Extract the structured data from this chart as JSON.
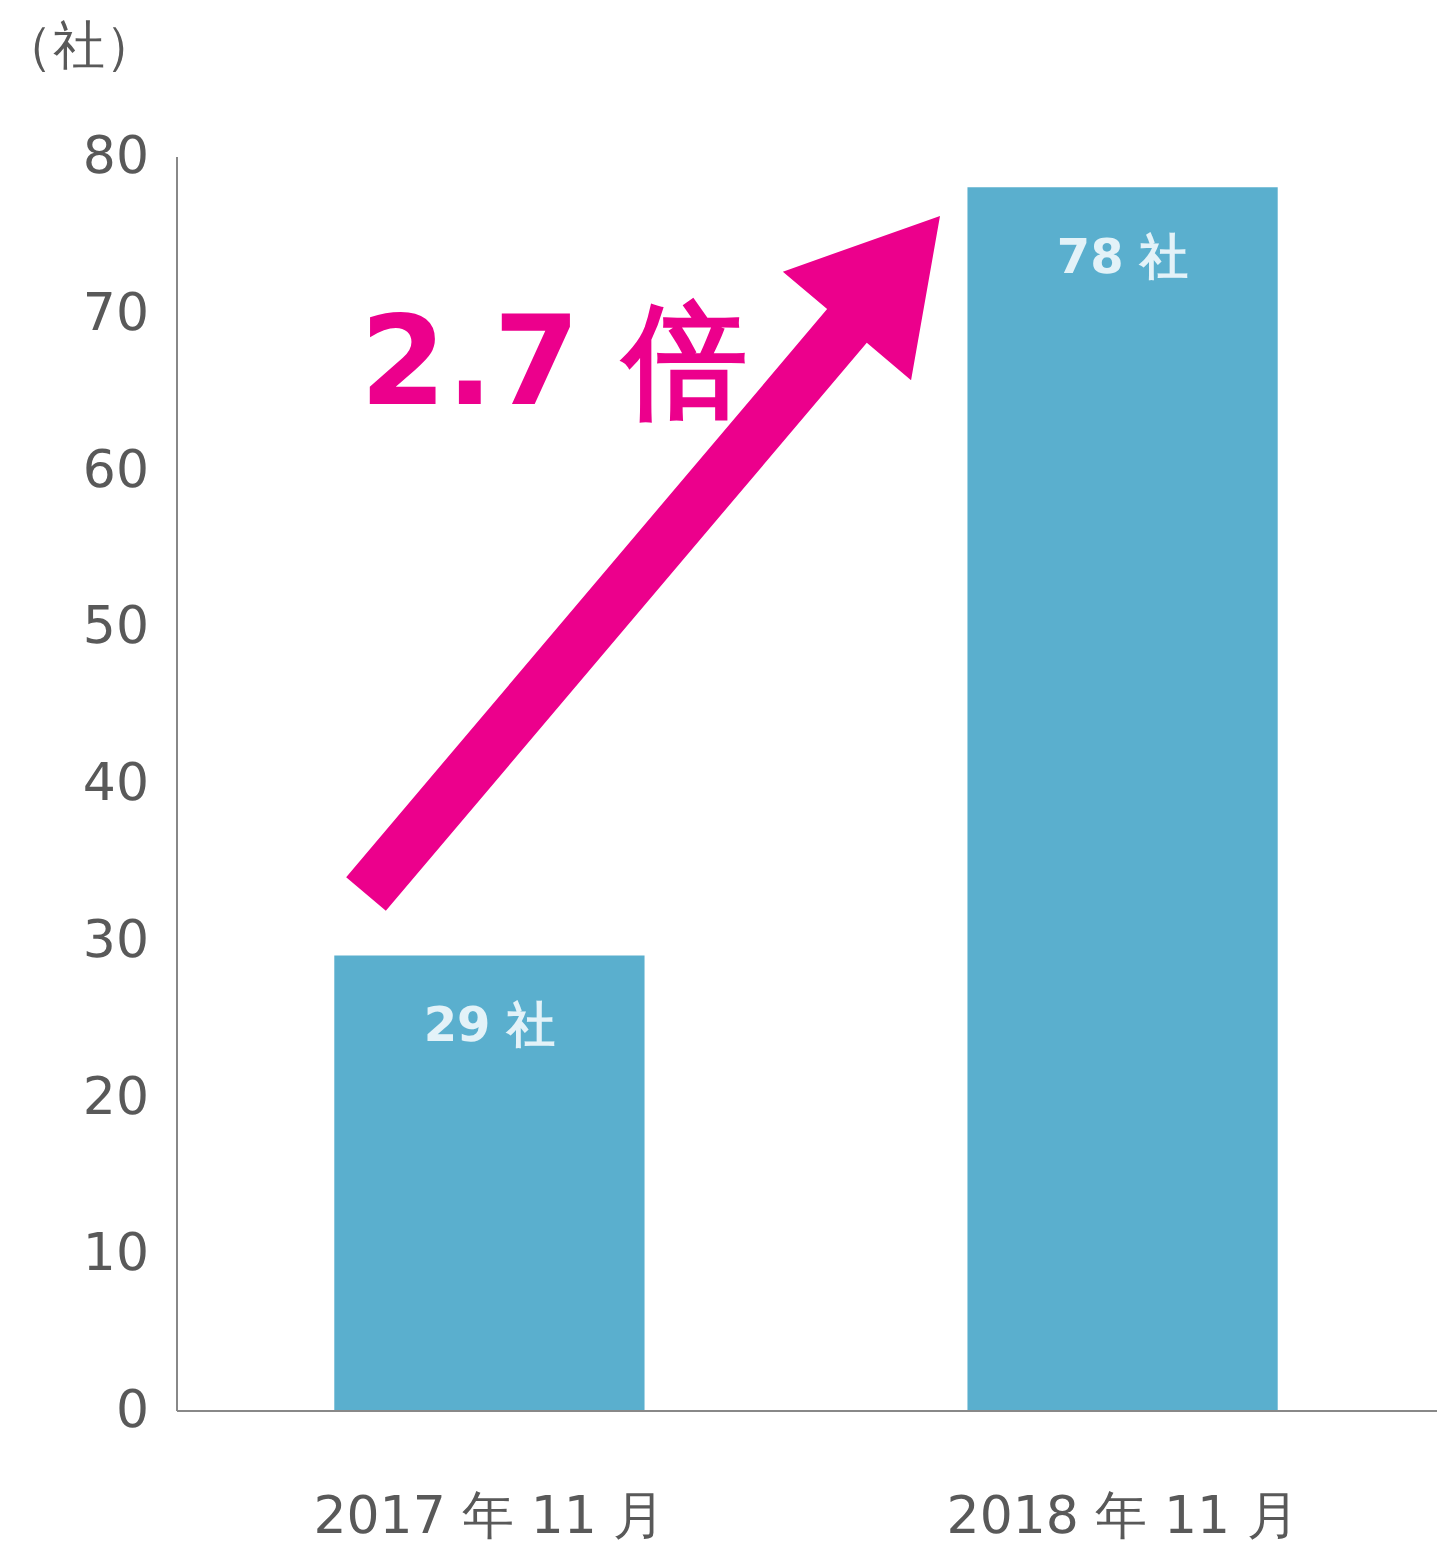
{
  "chart_data": {
    "type": "bar",
    "ylabel": "（社）",
    "categories": [
      "2017 年 11 月",
      "2018 年 11 月"
    ],
    "values": [
      29,
      78
    ],
    "value_labels": [
      "29 社",
      "78 社"
    ],
    "color": "#5aafce",
    "ylim": [
      0,
      80
    ],
    "yticks": [
      0,
      10,
      20,
      30,
      40,
      50,
      60,
      70,
      80
    ],
    "grid": false,
    "annotations": [
      "2.7 倍"
    ]
  }
}
